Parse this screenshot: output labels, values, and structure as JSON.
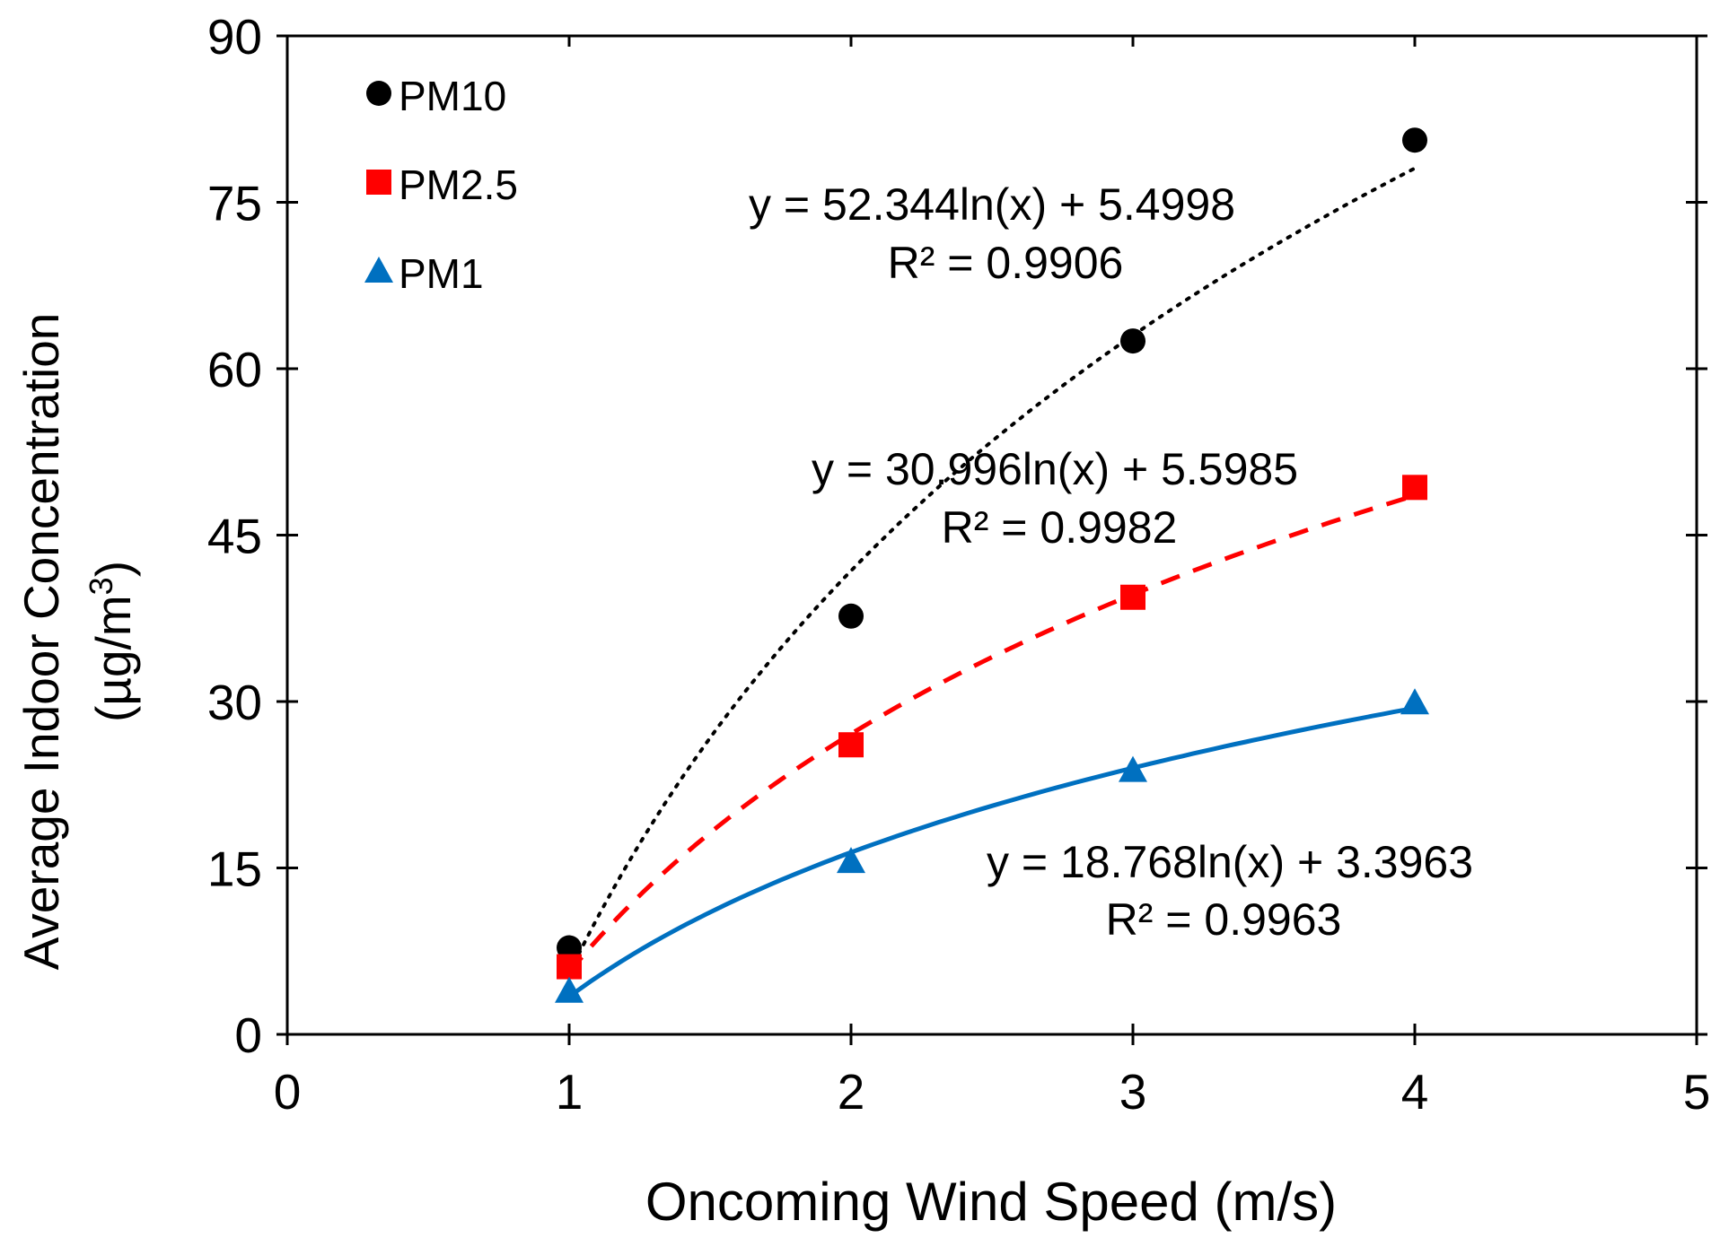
{
  "chart_data": {
    "type": "scatter",
    "title": "",
    "xlabel": "Oncoming Wind Speed (m/s)",
    "ylabel_line1": "Average  Indoor Concentration",
    "ylabel_line2_prefix": "(µg/m",
    "ylabel_line2_sup": "3",
    "ylabel_line2_suffix": ")",
    "xlim": [
      0,
      5
    ],
    "ylim": [
      0,
      90
    ],
    "x_ticks": [
      0,
      1,
      2,
      3,
      4,
      5
    ],
    "y_ticks": [
      0,
      15,
      30,
      45,
      60,
      75,
      90
    ],
    "x_tick_labels": [
      "0",
      "1",
      "2",
      "3",
      "4",
      "5"
    ],
    "y_tick_labels": [
      "0",
      "15",
      "30",
      "45",
      "60",
      "75",
      "90"
    ],
    "grid": false,
    "legend_position": "top-left",
    "series": [
      {
        "name": "PM10",
        "marker": "circle",
        "color": "#000000",
        "x": [
          1,
          2,
          3,
          4
        ],
        "y": [
          7.8,
          37.7,
          62.5,
          80.6
        ],
        "trend": {
          "type": "log",
          "a": 52.344,
          "b": 5.4998,
          "style": "dotted",
          "color": "#000000"
        },
        "equation": "y = 52.344ln(x) + 5.4998",
        "r2": "R² = 0.9906"
      },
      {
        "name": "PM2.5",
        "marker": "square",
        "color": "#ff0000",
        "x": [
          1,
          2,
          3,
          4
        ],
        "y": [
          6.1,
          26.1,
          39.4,
          49.3
        ],
        "trend": {
          "type": "log",
          "a": 30.996,
          "b": 5.5985,
          "style": "dashed",
          "color": "#ff0000"
        },
        "equation": "y = 30.996ln(x) + 5.5985",
        "r2": "R² = 0.9982"
      },
      {
        "name": "PM1",
        "marker": "triangle",
        "color": "#0070c0",
        "x": [
          1,
          2,
          3,
          4
        ],
        "y": [
          3.9,
          15.6,
          23.8,
          29.9
        ],
        "trend": {
          "type": "log",
          "a": 18.768,
          "b": 3.3963,
          "style": "solid",
          "color": "#0070c0"
        },
        "equation": "y = 18.768ln(x) + 3.3963",
        "r2": "R² = 0.9963"
      }
    ]
  }
}
